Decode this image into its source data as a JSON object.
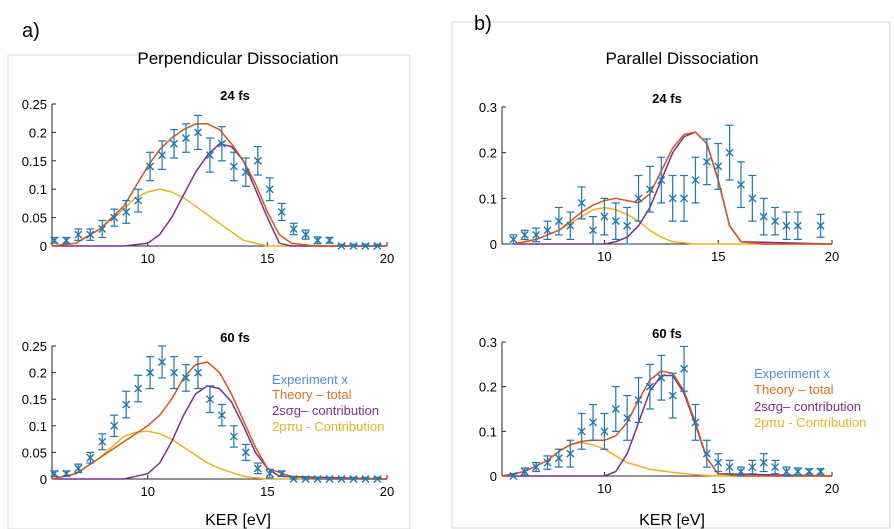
{
  "panels": [
    {
      "label": "a)",
      "title": "Perpendicular Dissociation",
      "xlabel": "KER [eV]"
    },
    {
      "label": "b)",
      "title": "Parallel Dissociation",
      "xlabel": "KER [eV]"
    }
  ],
  "legend": [
    {
      "text": "Experiment x",
      "color": "#4a90d9"
    },
    {
      "text": "Theory – total",
      "color": "#e07020"
    },
    {
      "text": "2sσg– contribution",
      "color": "#7d2e91"
    },
    {
      "text": "2pπu - Contribution",
      "color": "#eab121"
    }
  ],
  "colors": {
    "experiment": "#1f77b4",
    "total": "#d9541a",
    "sg": "#7d2e91",
    "pu": "#edb120"
  },
  "chart_data": [
    {
      "type": "line",
      "title": "24 fs",
      "xlim": [
        6,
        20
      ],
      "ylim": [
        0,
        0.25
      ],
      "xticks": [
        10,
        15,
        20
      ],
      "yticks": [
        0,
        0.05,
        0.1,
        0.15,
        0.2,
        0.25
      ],
      "ytick_labels": [
        "0",
        "0.05",
        "0.1",
        "0.15",
        "0.2",
        "0.25"
      ],
      "experiment": {
        "x": [
          6.1,
          6.6,
          7.1,
          7.6,
          8.1,
          8.6,
          9.1,
          9.6,
          10.1,
          10.6,
          11.1,
          11.6,
          12.1,
          12.6,
          13.1,
          13.6,
          14.1,
          14.6,
          15.1,
          15.6,
          16.1,
          16.6,
          17.1,
          17.6,
          18.1,
          18.6,
          19.1,
          19.6
        ],
        "y": [
          0.01,
          0.01,
          0.02,
          0.02,
          0.03,
          0.05,
          0.06,
          0.08,
          0.14,
          0.16,
          0.18,
          0.19,
          0.2,
          0.16,
          0.18,
          0.14,
          0.13,
          0.15,
          0.1,
          0.06,
          0.03,
          0.02,
          0.01,
          0.01,
          0.0,
          0.0,
          0.0,
          0.0
        ],
        "err": [
          0.005,
          0.005,
          0.01,
          0.01,
          0.015,
          0.015,
          0.02,
          0.02,
          0.025,
          0.025,
          0.025,
          0.025,
          0.03,
          0.03,
          0.03,
          0.025,
          0.025,
          0.025,
          0.02,
          0.015,
          0.01,
          0.008,
          0.006,
          0.005,
          0.003,
          0.003,
          0.003,
          0.003
        ]
      },
      "series": [
        {
          "key": "total",
          "x": [
            6,
            7,
            8,
            9,
            10,
            10.5,
            11,
            11.5,
            12,
            12.5,
            13,
            13.5,
            14,
            14.5,
            15,
            15.5,
            16,
            17,
            18,
            20
          ],
          "y": [
            0,
            0.005,
            0.03,
            0.07,
            0.14,
            0.17,
            0.19,
            0.205,
            0.215,
            0.215,
            0.205,
            0.18,
            0.15,
            0.11,
            0.06,
            0.02,
            0.005,
            0,
            0,
            0
          ]
        },
        {
          "key": "sg",
          "x": [
            6,
            9,
            10,
            10.5,
            11,
            11.5,
            12,
            12.5,
            13,
            13.5,
            14,
            14.5,
            15,
            15.5,
            16,
            20
          ],
          "y": [
            0,
            0,
            0.005,
            0.02,
            0.05,
            0.09,
            0.13,
            0.16,
            0.18,
            0.175,
            0.15,
            0.1,
            0.05,
            0.005,
            0,
            0
          ]
        },
        {
          "key": "pu",
          "x": [
            6,
            7,
            8,
            9,
            9.5,
            10,
            10.5,
            11,
            11.5,
            12,
            12.5,
            13,
            13.5,
            14,
            15,
            20
          ],
          "y": [
            0,
            0.005,
            0.03,
            0.065,
            0.085,
            0.095,
            0.1,
            0.095,
            0.085,
            0.07,
            0.055,
            0.04,
            0.025,
            0.01,
            0,
            0
          ]
        }
      ]
    },
    {
      "type": "line",
      "title": "60 fs",
      "xlim": [
        6,
        20
      ],
      "ylim": [
        0,
        0.25
      ],
      "xticks": [
        10,
        15,
        20
      ],
      "yticks": [
        0,
        0.05,
        0.1,
        0.15,
        0.2,
        0.25
      ],
      "ytick_labels": [
        "0",
        "0.05",
        "0.1",
        "0.15",
        "0.2",
        "0.25"
      ],
      "experiment": {
        "x": [
          6.1,
          6.6,
          7.1,
          7.6,
          8.1,
          8.6,
          9.1,
          9.6,
          10.1,
          10.6,
          11.1,
          11.6,
          12.1,
          12.6,
          13.1,
          13.6,
          14.1,
          14.6,
          15.1,
          15.6,
          16.1,
          16.6,
          17.1,
          17.6,
          18.1,
          18.6,
          19.1,
          19.6
        ],
        "y": [
          0.01,
          0.01,
          0.02,
          0.04,
          0.07,
          0.1,
          0.14,
          0.17,
          0.2,
          0.22,
          0.2,
          0.19,
          0.2,
          0.15,
          0.12,
          0.08,
          0.05,
          0.02,
          0.01,
          0.01,
          0.0,
          0.0,
          0.0,
          0.0,
          0.0,
          0.0,
          0.0,
          0.0
        ],
        "err": [
          0.005,
          0.005,
          0.008,
          0.01,
          0.015,
          0.02,
          0.025,
          0.025,
          0.03,
          0.03,
          0.03,
          0.025,
          0.03,
          0.025,
          0.02,
          0.02,
          0.015,
          0.01,
          0.008,
          0.005,
          0.003,
          0.003,
          0.003,
          0.003,
          0.003,
          0.003,
          0.003,
          0.003
        ]
      },
      "series": [
        {
          "key": "total",
          "x": [
            6,
            7,
            8,
            9,
            9.5,
            10,
            10.5,
            11,
            11.5,
            12,
            12.5,
            13,
            13.5,
            14,
            14.5,
            15,
            16,
            17,
            20
          ],
          "y": [
            0,
            0.01,
            0.04,
            0.07,
            0.085,
            0.1,
            0.12,
            0.15,
            0.19,
            0.215,
            0.22,
            0.2,
            0.16,
            0.11,
            0.06,
            0.02,
            0.005,
            0,
            0
          ]
        },
        {
          "key": "sg",
          "x": [
            6,
            9,
            10,
            10.5,
            11,
            11.5,
            12,
            12.5,
            13,
            13.5,
            14,
            14.5,
            15,
            15.5,
            20
          ],
          "y": [
            0,
            0,
            0.01,
            0.03,
            0.07,
            0.12,
            0.16,
            0.175,
            0.17,
            0.145,
            0.1,
            0.05,
            0.02,
            0.005,
            0
          ]
        },
        {
          "key": "pu",
          "x": [
            6,
            7,
            8,
            8.5,
            9,
            9.5,
            10,
            10.5,
            11,
            11.5,
            12,
            12.5,
            13,
            14,
            15,
            20
          ],
          "y": [
            0,
            0.01,
            0.04,
            0.06,
            0.08,
            0.088,
            0.09,
            0.085,
            0.075,
            0.06,
            0.045,
            0.03,
            0.02,
            0.005,
            0,
            0
          ]
        }
      ]
    },
    {
      "type": "line",
      "title": "24 fs",
      "xlim": [
        5.5,
        20
      ],
      "ylim": [
        0,
        0.3
      ],
      "xticks": [
        10,
        15,
        20
      ],
      "yticks": [
        0,
        0.1,
        0.2,
        0.3
      ],
      "ytick_labels": [
        "0",
        "0.1",
        "0.2",
        "0.3"
      ],
      "experiment": {
        "x": [
          6.0,
          6.5,
          7.0,
          7.5,
          8.0,
          8.5,
          9.0,
          9.5,
          10.0,
          10.5,
          11.0,
          11.5,
          12.0,
          12.5,
          13.0,
          13.5,
          14.0,
          14.5,
          15.0,
          15.5,
          16.0,
          16.5,
          17.0,
          17.5,
          18.0,
          18.5,
          19.5
        ],
        "y": [
          0.01,
          0.02,
          0.02,
          0.03,
          0.05,
          0.04,
          0.09,
          0.03,
          0.06,
          0.05,
          0.04,
          0.1,
          0.12,
          0.14,
          0.1,
          0.1,
          0.14,
          0.18,
          0.17,
          0.2,
          0.13,
          0.1,
          0.06,
          0.05,
          0.04,
          0.04,
          0.04
        ],
        "err": [
          0.01,
          0.01,
          0.015,
          0.02,
          0.03,
          0.03,
          0.035,
          0.03,
          0.04,
          0.04,
          0.04,
          0.05,
          0.05,
          0.05,
          0.05,
          0.05,
          0.05,
          0.05,
          0.05,
          0.06,
          0.05,
          0.05,
          0.04,
          0.03,
          0.03,
          0.03,
          0.025
        ]
      },
      "series": [
        {
          "key": "total",
          "x": [
            6,
            7,
            8,
            8.5,
            9,
            9.5,
            10,
            10.5,
            11,
            11.5,
            12,
            12.5,
            13,
            13.5,
            14,
            14.5,
            15,
            15.5,
            16,
            17,
            20
          ],
          "y": [
            0,
            0.01,
            0.03,
            0.05,
            0.07,
            0.085,
            0.095,
            0.1,
            0.095,
            0.09,
            0.11,
            0.16,
            0.21,
            0.24,
            0.245,
            0.22,
            0.14,
            0.04,
            0.005,
            0,
            0
          ]
        },
        {
          "key": "sg",
          "x": [
            6,
            10,
            10.5,
            11,
            11.5,
            12,
            12.5,
            13,
            13.5,
            14,
            14.5,
            15,
            15.5,
            16,
            20
          ],
          "y": [
            0,
            0,
            0.005,
            0.015,
            0.04,
            0.08,
            0.14,
            0.2,
            0.235,
            0.245,
            0.22,
            0.14,
            0.04,
            0.005,
            0
          ]
        },
        {
          "key": "pu",
          "x": [
            6,
            7,
            8,
            8.5,
            9,
            9.5,
            10,
            10.5,
            11,
            11.5,
            12,
            12.5,
            13,
            14,
            20
          ],
          "y": [
            0,
            0.01,
            0.03,
            0.045,
            0.06,
            0.075,
            0.08,
            0.075,
            0.065,
            0.05,
            0.03,
            0.015,
            0.005,
            0,
            0
          ]
        }
      ]
    },
    {
      "type": "line",
      "title": "60 fs",
      "xlim": [
        5.5,
        20
      ],
      "ylim": [
        0,
        0.3
      ],
      "xticks": [
        10,
        15,
        20
      ],
      "yticks": [
        0,
        0.1,
        0.2,
        0.3
      ],
      "ytick_labels": [
        "0",
        "0.1",
        "0.2",
        "0.3"
      ],
      "experiment": {
        "x": [
          6.0,
          6.5,
          7.0,
          7.5,
          8.0,
          8.5,
          9.0,
          9.5,
          10.0,
          10.5,
          11.0,
          11.5,
          12.0,
          12.5,
          13.0,
          13.5,
          14.0,
          14.5,
          15.0,
          15.5,
          16.0,
          16.5,
          17.0,
          17.5,
          18.0,
          18.5,
          19.0,
          19.5
        ],
        "y": [
          0.0,
          0.01,
          0.02,
          0.03,
          0.04,
          0.05,
          0.1,
          0.12,
          0.1,
          0.15,
          0.13,
          0.17,
          0.2,
          0.22,
          0.18,
          0.24,
          0.12,
          0.05,
          0.03,
          0.02,
          0.01,
          0.02,
          0.03,
          0.02,
          0.01,
          0.01,
          0.01,
          0.01
        ],
        "err": [
          0.005,
          0.008,
          0.01,
          0.015,
          0.02,
          0.03,
          0.04,
          0.04,
          0.04,
          0.05,
          0.05,
          0.05,
          0.05,
          0.05,
          0.05,
          0.05,
          0.04,
          0.03,
          0.02,
          0.015,
          0.01,
          0.015,
          0.02,
          0.015,
          0.01,
          0.008,
          0.006,
          0.006
        ]
      },
      "series": [
        {
          "key": "total",
          "x": [
            5.5,
            6.5,
            7.5,
            8,
            8.5,
            9,
            9.5,
            10,
            10.5,
            11,
            11.5,
            12,
            12.5,
            13,
            13.5,
            14,
            14.5,
            15,
            16,
            20
          ],
          "y": [
            0,
            0.01,
            0.035,
            0.055,
            0.07,
            0.078,
            0.08,
            0.08,
            0.09,
            0.12,
            0.17,
            0.215,
            0.235,
            0.23,
            0.19,
            0.12,
            0.04,
            0.005,
            0,
            0
          ]
        },
        {
          "key": "sg",
          "x": [
            5.5,
            10,
            10.5,
            11,
            11.5,
            12,
            12.5,
            13,
            13.5,
            14,
            14.5,
            15,
            20
          ],
          "y": [
            0,
            0,
            0.01,
            0.05,
            0.12,
            0.19,
            0.225,
            0.225,
            0.185,
            0.115,
            0.04,
            0.005,
            0
          ]
        },
        {
          "key": "pu",
          "x": [
            5.5,
            6.5,
            7.5,
            8,
            8.5,
            9,
            9.5,
            10,
            10.5,
            11,
            12,
            13,
            14,
            15,
            20
          ],
          "y": [
            0,
            0.01,
            0.035,
            0.055,
            0.07,
            0.075,
            0.07,
            0.06,
            0.045,
            0.03,
            0.015,
            0.008,
            0.003,
            0,
            0
          ]
        }
      ]
    }
  ]
}
